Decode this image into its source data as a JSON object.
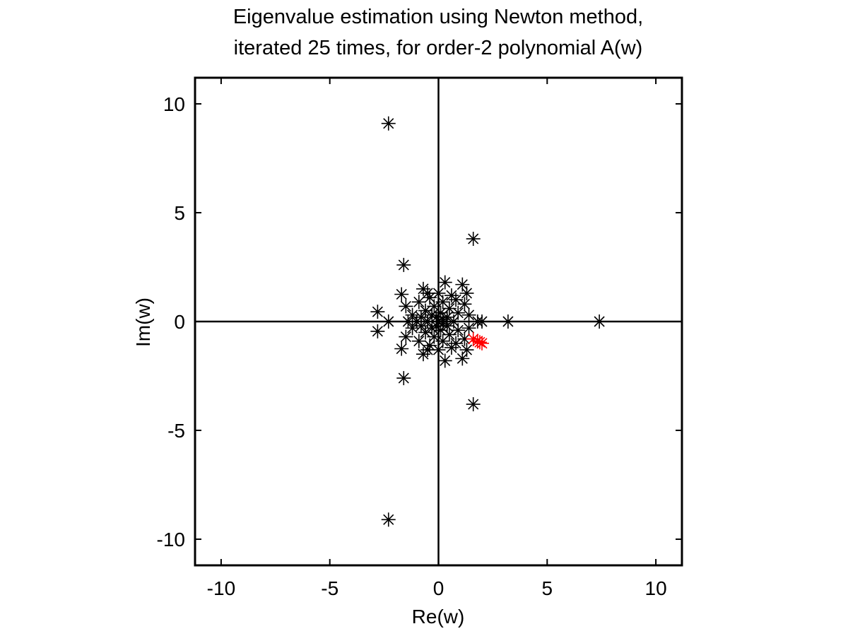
{
  "chart_data": {
    "type": "scatter",
    "title_lines": [
      "Eigenvalue estimation using Newton method,",
      "iterated 25 times, for order-2 polynomial A(w)"
    ],
    "xlabel": "Re(w)",
    "ylabel": "Im(w)",
    "xlim": [
      -11.2,
      11.2
    ],
    "ylim": [
      -11.2,
      11.2
    ],
    "xticks": [
      -10,
      -5,
      0,
      5,
      10
    ],
    "yticks": [
      -10,
      -5,
      0,
      5,
      10
    ],
    "grid": false,
    "axes_lines": true,
    "marker": "asterisk",
    "series": [
      {
        "color": "#000000",
        "points": [
          [
            -2.3,
            9.1
          ],
          [
            -2.3,
            -9.1
          ],
          [
            1.6,
            3.8
          ],
          [
            1.6,
            -3.8
          ],
          [
            -1.6,
            2.6
          ],
          [
            -1.6,
            -2.6
          ],
          [
            7.4,
            0.0
          ],
          [
            3.2,
            0.0
          ],
          [
            2.0,
            0.0
          ],
          [
            1.8,
            0.0
          ],
          [
            -2.8,
            0.45
          ],
          [
            -2.8,
            -0.45
          ],
          [
            -2.3,
            0.0
          ],
          [
            -1.7,
            1.25
          ],
          [
            -1.7,
            -1.25
          ],
          [
            -1.5,
            0.7
          ],
          [
            -1.5,
            -0.7
          ],
          [
            -1.4,
            0.0
          ],
          [
            -1.2,
            0.3
          ],
          [
            -1.2,
            -0.3
          ],
          [
            -0.9,
            0.9
          ],
          [
            -0.9,
            -0.9
          ],
          [
            -0.7,
            1.5
          ],
          [
            -0.7,
            -1.5
          ],
          [
            -0.6,
            0.5
          ],
          [
            -0.6,
            -0.5
          ],
          [
            -0.5,
            0.0
          ],
          [
            -0.4,
            1.1
          ],
          [
            -0.4,
            -1.1
          ],
          [
            -0.3,
            0.3
          ],
          [
            -0.3,
            -0.3
          ],
          [
            -0.2,
            0.7
          ],
          [
            -0.2,
            -0.7
          ],
          [
            0.0,
            1.3
          ],
          [
            0.0,
            -1.3
          ],
          [
            0.0,
            0.0
          ],
          [
            0.1,
            0.4
          ],
          [
            0.1,
            -0.4
          ],
          [
            0.2,
            0.9
          ],
          [
            0.2,
            -0.9
          ],
          [
            0.3,
            1.8
          ],
          [
            0.3,
            -1.8
          ],
          [
            0.4,
            0.2
          ],
          [
            0.4,
            -0.2
          ],
          [
            0.5,
            0.6
          ],
          [
            0.5,
            -0.6
          ],
          [
            0.6,
            1.2
          ],
          [
            0.6,
            -1.2
          ],
          [
            0.7,
            0.0
          ],
          [
            0.9,
            0.4
          ],
          [
            0.9,
            -0.4
          ],
          [
            1.1,
            1.7
          ],
          [
            1.1,
            -1.7
          ],
          [
            1.2,
            0.8
          ],
          [
            1.2,
            -0.8
          ],
          [
            1.3,
            1.3
          ],
          [
            1.3,
            -1.3
          ],
          [
            1.4,
            0.3
          ],
          [
            1.4,
            -0.3
          ],
          [
            -1.0,
            0.0
          ],
          [
            -0.8,
            0.2
          ],
          [
            -0.8,
            -0.2
          ],
          [
            0.2,
            0.1
          ],
          [
            0.2,
            -0.1
          ],
          [
            -0.1,
            0.2
          ],
          [
            -0.1,
            -0.2
          ],
          [
            0.8,
            1.0
          ],
          [
            0.8,
            -1.0
          ],
          [
            -0.5,
            1.3
          ],
          [
            -0.5,
            -1.3
          ]
        ]
      },
      {
        "color": "#ff0000",
        "points": [
          [
            1.6,
            -0.8
          ],
          [
            1.8,
            -0.9
          ],
          [
            1.9,
            -0.95
          ],
          [
            2.0,
            -1.0
          ]
        ]
      }
    ]
  }
}
